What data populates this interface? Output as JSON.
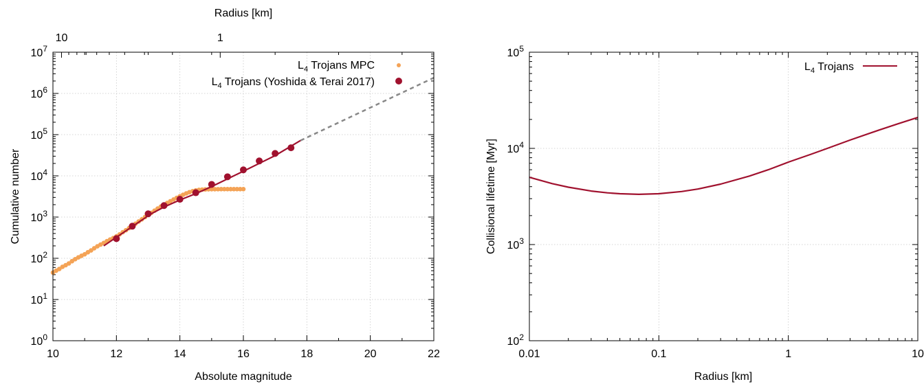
{
  "chart_data": [
    {
      "type": "scatter",
      "xlabel": "Absolute magnitude",
      "ylabel": "Cumulative number",
      "x2label": "Radius [km]",
      "xlim": [
        10,
        22
      ],
      "ylim_log10": [
        0,
        7
      ],
      "y_scale": "log",
      "grid": true,
      "legend_position": "top-right",
      "x_ticks": [
        "10",
        "12",
        "14",
        "16",
        "18",
        "20",
        "22"
      ],
      "x2_ticks": [
        "10",
        "1"
      ],
      "y_tick_base": "10",
      "y_tick_exponents": [
        "0",
        "1",
        "2",
        "3",
        "4",
        "5",
        "6",
        "7"
      ],
      "series": [
        {
          "name_main": "L",
          "name_sub": "4",
          "name_rest": " Trojans MPC",
          "kind": "points-small",
          "color": "#f4a356",
          "x": [
            10.0,
            10.1,
            10.2,
            10.3,
            10.4,
            10.5,
            10.6,
            10.7,
            10.8,
            10.9,
            11.0,
            11.1,
            11.2,
            11.3,
            11.4,
            11.5,
            11.6,
            11.7,
            11.8,
            11.9,
            12.0,
            12.1,
            12.2,
            12.3,
            12.4,
            12.5,
            12.6,
            12.7,
            12.8,
            12.9,
            13.0,
            13.1,
            13.2,
            13.3,
            13.4,
            13.5,
            13.6,
            13.7,
            13.8,
            13.9,
            14.0,
            14.1,
            14.2,
            14.3,
            14.4,
            14.5,
            14.6,
            14.7,
            14.8,
            14.9,
            15.0,
            15.1,
            15.2,
            15.3,
            15.4,
            15.5,
            15.6,
            15.7,
            15.8,
            15.9,
            16.0
          ],
          "y": [
            45,
            50,
            55,
            62,
            68,
            75,
            85,
            95,
            105,
            115,
            125,
            140,
            155,
            175,
            195,
            215,
            235,
            260,
            285,
            310,
            340,
            380,
            430,
            480,
            540,
            610,
            690,
            780,
            880,
            1000,
            1130,
            1270,
            1430,
            1610,
            1800,
            2000,
            2200,
            2430,
            2670,
            2930,
            3200,
            3480,
            3760,
            4020,
            4250,
            4430,
            4560,
            4640,
            4690,
            4720,
            4740,
            4750,
            4755,
            4760,
            4762,
            4764,
            4765,
            4766,
            4767,
            4768,
            4768
          ]
        },
        {
          "name_main": "L",
          "name_sub": "4",
          "name_rest": " Trojans (Yoshida & Terai 2017)",
          "kind": "points",
          "color": "#a0112e",
          "x": [
            12.0,
            12.5,
            13.0,
            13.5,
            14.0,
            14.5,
            15.0,
            15.5,
            16.0,
            16.5,
            17.0,
            17.5
          ],
          "y": [
            300,
            600,
            1200,
            1900,
            2700,
            3900,
            6200,
            9500,
            14000,
            23000,
            35000,
            48000
          ]
        },
        {
          "kind": "fit-line",
          "color": "#a0112e",
          "x": [
            11.6,
            12.9,
            13.0,
            13.5,
            14.0,
            14.5,
            15.0,
            16.0,
            17.0,
            17.8
          ],
          "y": [
            200,
            950,
            1100,
            1750,
            2600,
            3700,
            5500,
            13000,
            31000,
            72000
          ]
        },
        {
          "kind": "extrapolation",
          "color": "#888888",
          "x": [
            17.8,
            22.0
          ],
          "y": [
            72000,
            2400000
          ]
        }
      ]
    },
    {
      "type": "line",
      "xlabel": "Radius [km]",
      "ylabel": "Collisional lifetime [Myr]",
      "x_scale": "log",
      "y_scale": "log",
      "xlim": [
        0.01,
        10
      ],
      "ylim_log10": [
        2,
        5
      ],
      "grid": true,
      "legend_position": "top-right",
      "x_ticks": [
        "0.01",
        "0.1",
        "1",
        "10"
      ],
      "y_tick_base": "10",
      "y_tick_exponents": [
        "2",
        "3",
        "4",
        "5"
      ],
      "series": [
        {
          "name_main": "L",
          "name_sub": "4",
          "name_rest": " Trojans",
          "color": "#a0112e",
          "x": [
            0.01,
            0.015,
            0.02,
            0.03,
            0.04,
            0.05,
            0.07,
            0.1,
            0.15,
            0.2,
            0.3,
            0.5,
            0.7,
            1.0,
            1.5,
            2,
            3,
            5,
            7,
            10
          ],
          "y": [
            5000,
            4300,
            3950,
            3600,
            3450,
            3380,
            3330,
            3380,
            3560,
            3780,
            4250,
            5150,
            6000,
            7200,
            8700,
            10000,
            12200,
            15500,
            18000,
            21000
          ]
        }
      ]
    }
  ]
}
